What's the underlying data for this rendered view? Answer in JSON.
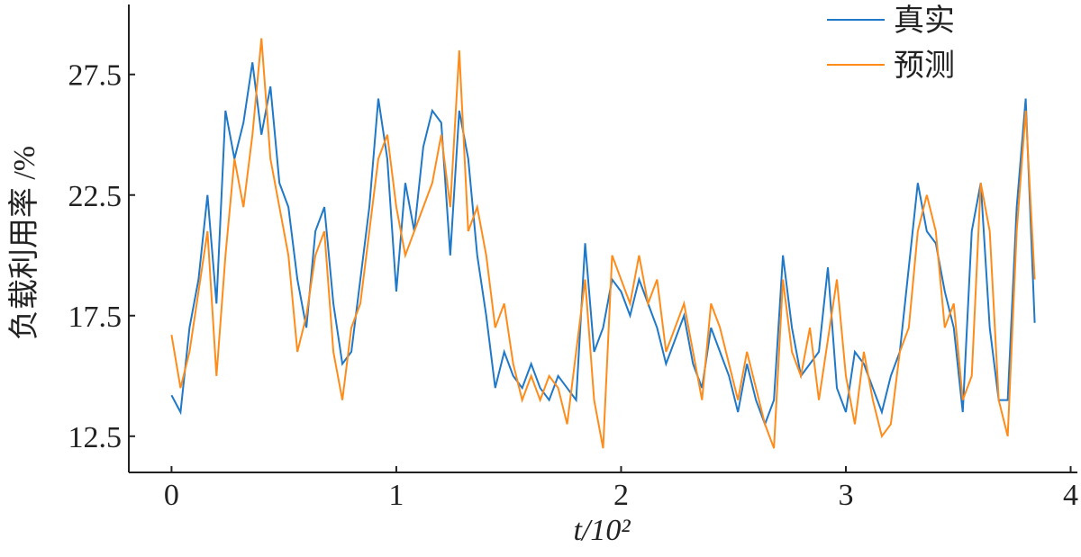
{
  "chart_data": {
    "type": "line",
    "xlabel": "t/10²",
    "ylabel": "负载利用率 /%",
    "x": [
      0,
      0.04,
      0.08,
      0.12,
      0.16,
      0.2,
      0.24,
      0.28,
      0.32,
      0.36,
      0.4,
      0.44,
      0.48,
      0.52,
      0.56,
      0.6,
      0.64,
      0.68,
      0.72,
      0.76,
      0.8,
      0.84,
      0.88,
      0.92,
      0.96,
      1,
      1.04,
      1.08,
      1.12,
      1.16,
      1.2,
      1.24,
      1.28,
      1.32,
      1.36,
      1.4,
      1.44,
      1.48,
      1.52,
      1.56,
      1.6,
      1.64,
      1.68,
      1.72,
      1.76,
      1.8,
      1.84,
      1.88,
      1.92,
      1.96,
      2,
      2.04,
      2.08,
      2.12,
      2.16,
      2.2,
      2.24,
      2.28,
      2.32,
      2.36,
      2.4,
      2.44,
      2.48,
      2.52,
      2.56,
      2.6,
      2.64,
      2.68,
      2.72,
      2.76,
      2.8,
      2.84,
      2.88,
      2.92,
      2.96,
      3,
      3.04,
      3.08,
      3.12,
      3.16,
      3.2,
      3.24,
      3.28,
      3.32,
      3.36,
      3.4,
      3.44,
      3.48,
      3.52,
      3.56,
      3.6,
      3.64,
      3.68,
      3.72,
      3.76,
      3.8,
      3.84
    ],
    "series": [
      {
        "name": "真实",
        "color": "#1f78c8",
        "values": [
          14.2,
          13.5,
          17,
          19,
          22.5,
          18,
          26,
          24,
          25.5,
          28,
          25,
          27,
          23,
          22,
          19,
          17,
          21,
          22,
          18,
          15.5,
          16,
          19,
          22,
          26.5,
          24,
          18.5,
          23,
          21,
          24.5,
          26,
          25.5,
          20,
          26,
          24,
          20,
          17.5,
          14.5,
          16,
          15,
          14.5,
          15.5,
          14.5,
          14,
          15,
          14.5,
          14,
          20.5,
          16,
          17,
          19,
          18.5,
          17.5,
          19,
          18,
          17,
          15.5,
          16.5,
          17.5,
          15.5,
          14.5,
          17,
          16,
          15,
          13.5,
          15.5,
          14,
          13,
          14,
          20,
          17,
          15,
          15.5,
          16,
          19.5,
          14.5,
          13.5,
          16,
          15.5,
          14.5,
          13.5,
          15,
          16,
          19.5,
          23,
          21,
          20.5,
          18.5,
          17,
          13.5,
          21,
          23,
          17,
          14,
          14,
          22,
          26.5,
          17.2
        ]
      },
      {
        "name": "预测",
        "color": "#ff8c1a",
        "values": [
          16.7,
          14.5,
          16,
          18.5,
          21,
          15,
          20,
          24,
          22,
          25,
          29,
          24,
          22,
          20,
          16,
          17.5,
          20,
          21,
          16,
          14,
          17,
          18,
          21,
          24,
          25,
          22,
          20,
          21,
          22,
          23,
          25,
          22,
          28.5,
          21,
          22,
          20,
          17,
          18,
          15.5,
          14,
          15,
          14,
          15,
          14.5,
          13,
          16,
          19,
          14,
          12,
          20,
          19,
          18,
          20,
          18,
          19,
          16,
          17,
          18,
          16,
          14,
          18,
          17,
          15.5,
          14,
          16,
          14.5,
          13,
          12,
          19,
          16,
          15,
          17,
          14,
          16.5,
          19,
          15,
          13,
          16,
          14,
          12.5,
          13,
          16,
          17,
          21,
          22.5,
          21,
          17,
          18,
          14,
          15,
          23,
          21,
          14,
          12.5,
          21,
          26,
          19
        ]
      }
    ],
    "xlim": [
      -0.19,
      4.03
    ],
    "xticks": [
      0,
      1,
      2,
      3,
      4
    ],
    "ylim": [
      11.0,
      30.4
    ],
    "yticks": [
      12.5,
      17.5,
      22.5,
      27.5
    ],
    "legend": "upper right"
  }
}
